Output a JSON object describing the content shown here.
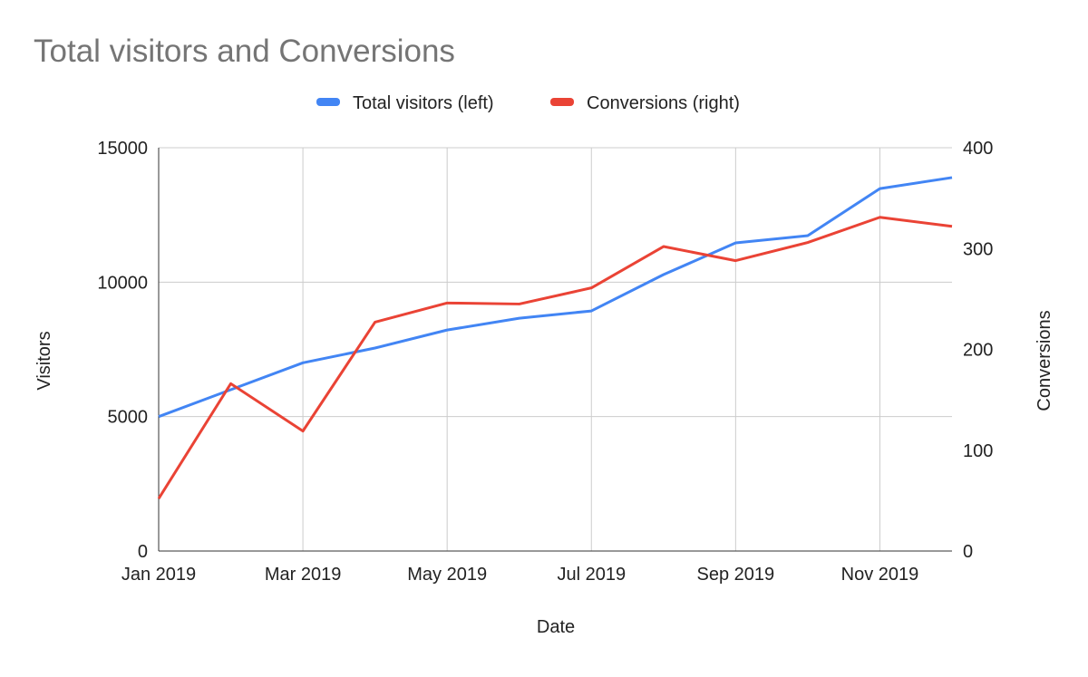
{
  "chart_data": {
    "type": "line",
    "title": "Total visitors and Conversions",
    "xlabel": "Date",
    "ylabel": "Visitors",
    "ylabel_right": "Conversions",
    "x": [
      "Jan 2019",
      "Feb 2019",
      "Mar 2019",
      "Apr 2019",
      "May 2019",
      "Jun 2019",
      "Jul 2019",
      "Aug 2019",
      "Sep 2019",
      "Oct 2019",
      "Nov 2019",
      "Dec 2019"
    ],
    "x_tick_labels": [
      "Jan 2019",
      "Mar 2019",
      "May 2019",
      "Jul 2019",
      "Sep 2019",
      "Nov 2019"
    ],
    "ylim": [
      0,
      15000
    ],
    "y_ticks": [
      0,
      5000,
      10000,
      15000
    ],
    "ylim_right": [
      0,
      400
    ],
    "y_ticks_right": [
      0,
      100,
      200,
      300,
      400
    ],
    "grid": true,
    "legend_position": "top",
    "series": [
      {
        "name": "Total visitors (left)",
        "axis": "left",
        "color": "#4285f4",
        "values": [
          5000,
          6000,
          7000,
          7550,
          8220,
          8660,
          8930,
          10280,
          11460,
          11730,
          13480,
          13890
        ]
      },
      {
        "name": "Conversions (right)",
        "axis": "right",
        "color": "#ea4335",
        "values": [
          52,
          166,
          119,
          227,
          246,
          245,
          261,
          302,
          288,
          306,
          331,
          322
        ]
      }
    ]
  }
}
